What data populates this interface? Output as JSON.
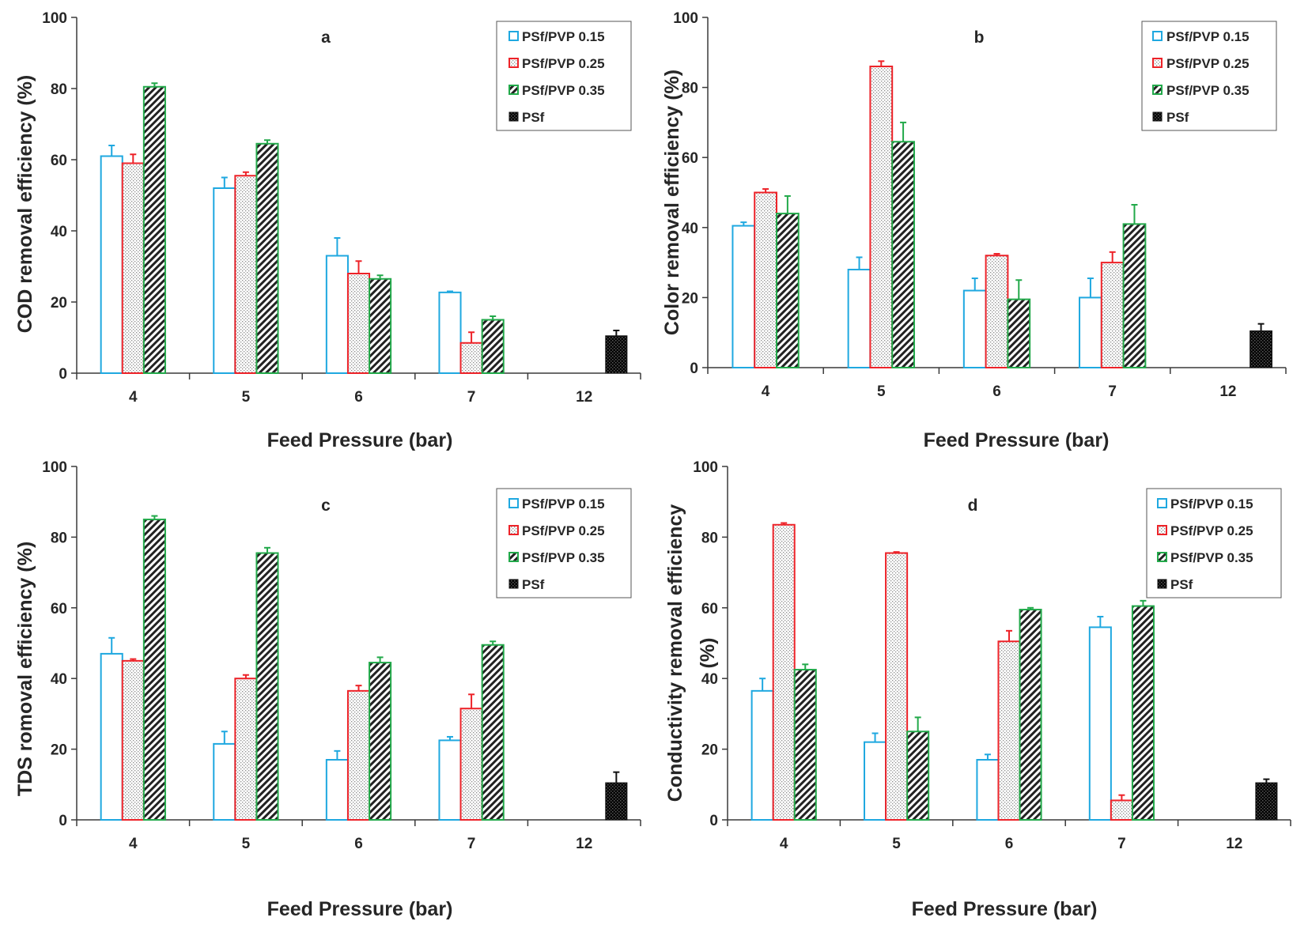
{
  "colors": {
    "PSf/PVP 0.15": "#1fa8e0",
    "PSf/PVP 0.25": "#ed2228",
    "PSf/PVP 0.35": "#22a94a",
    "PSf": "#111111"
  },
  "chart_data": [
    {
      "type": "bar",
      "letter": "a",
      "title": "a",
      "xlabel": "Feed Pressure (bar)",
      "ylabel": "COD removal efficiency (%)",
      "ylim": [
        0,
        100
      ],
      "yticks": [
        0,
        20,
        40,
        60,
        80,
        100
      ],
      "categories": [
        "4",
        "5",
        "6",
        "7",
        "12"
      ],
      "legend_position": "top-right",
      "series": [
        {
          "name": "PSf/PVP 0.15",
          "values": [
            61,
            52,
            33,
            22.7,
            null
          ],
          "errors": [
            3,
            3,
            5,
            0.3,
            null
          ]
        },
        {
          "name": "PSf/PVP 0.25",
          "values": [
            59,
            55.5,
            28,
            8.5,
            null
          ],
          "errors": [
            2.5,
            1,
            3.5,
            3,
            null
          ]
        },
        {
          "name": "PSf/PVP 0.35",
          "values": [
            80.5,
            64.5,
            26.5,
            15,
            null
          ],
          "errors": [
            1,
            1,
            1,
            1,
            null
          ]
        },
        {
          "name": "PSf",
          "values": [
            null,
            null,
            null,
            null,
            10.5
          ],
          "errors": [
            null,
            null,
            null,
            null,
            1.5
          ]
        }
      ]
    },
    {
      "type": "bar",
      "letter": "b",
      "title": "b",
      "xlabel": "Feed Pressure (bar)",
      "ylabel": "Color removal efficiency (%)",
      "ylim": [
        0,
        100
      ],
      "yticks": [
        0,
        20,
        40,
        60,
        80,
        100
      ],
      "categories": [
        "4",
        "5",
        "6",
        "7",
        "12"
      ],
      "legend_position": "top-right",
      "series": [
        {
          "name": "PSf/PVP 0.15",
          "values": [
            40.5,
            28,
            22,
            20,
            null
          ],
          "errors": [
            1,
            3.5,
            3.5,
            5.5,
            null
          ]
        },
        {
          "name": "PSf/PVP 0.25",
          "values": [
            50,
            86,
            32,
            30,
            null
          ],
          "errors": [
            1,
            1.5,
            0.5,
            3,
            null
          ]
        },
        {
          "name": "PSf/PVP 0.35",
          "values": [
            44,
            64.5,
            19.5,
            41,
            null
          ],
          "errors": [
            5,
            5.5,
            5.5,
            5.5,
            null
          ]
        },
        {
          "name": "PSf",
          "values": [
            null,
            null,
            null,
            null,
            10.5
          ],
          "errors": [
            null,
            null,
            null,
            null,
            2
          ]
        }
      ]
    },
    {
      "type": "bar",
      "letter": "c",
      "title": "c",
      "xlabel": "Feed Pressure (bar)",
      "ylabel": "TDS romoval efficiency (%)",
      "ylim": [
        0,
        100
      ],
      "yticks": [
        0,
        20,
        40,
        60,
        80,
        100
      ],
      "categories": [
        "4",
        "5",
        "6",
        "7",
        "12"
      ],
      "legend_position": "top-right",
      "series": [
        {
          "name": "PSf/PVP 0.15",
          "values": [
            47,
            21.5,
            17,
            22.5,
            null
          ],
          "errors": [
            4.5,
            3.5,
            2.5,
            1,
            null
          ]
        },
        {
          "name": "PSf/PVP 0.25",
          "values": [
            45,
            40,
            36.5,
            31.5,
            null
          ],
          "errors": [
            0.5,
            1,
            1.5,
            4,
            null
          ]
        },
        {
          "name": "PSf/PVP 0.35",
          "values": [
            85,
            75.5,
            44.5,
            49.5,
            null
          ],
          "errors": [
            1,
            1.5,
            1.5,
            1,
            null
          ]
        },
        {
          "name": "PSf",
          "values": [
            null,
            null,
            null,
            null,
            10.5
          ],
          "errors": [
            null,
            null,
            null,
            null,
            3
          ]
        }
      ]
    },
    {
      "type": "bar",
      "letter": "d",
      "title": "d",
      "xlabel": "Feed Pressure (bar)",
      "ylabel_lines": [
        "Conductivity removal efficiency",
        "(%)"
      ],
      "ylim": [
        0,
        100
      ],
      "yticks": [
        0,
        20,
        40,
        60,
        80,
        100
      ],
      "categories": [
        "4",
        "5",
        "6",
        "7",
        "12"
      ],
      "legend_position": "top-right",
      "series": [
        {
          "name": "PSf/PVP 0.15",
          "values": [
            36.5,
            22,
            17,
            54.5,
            null
          ],
          "errors": [
            3.5,
            2.5,
            1.5,
            3,
            null
          ]
        },
        {
          "name": "PSf/PVP 0.25",
          "values": [
            83.5,
            75.5,
            50.5,
            5.5,
            null
          ],
          "errors": [
            0.5,
            0.3,
            3,
            1.5,
            null
          ]
        },
        {
          "name": "PSf/PVP 0.35",
          "values": [
            42.5,
            25,
            59.5,
            60.5,
            null
          ],
          "errors": [
            1.5,
            4,
            0.5,
            1.5,
            null
          ]
        },
        {
          "name": "PSf",
          "values": [
            null,
            null,
            null,
            null,
            10.5
          ],
          "errors": [
            null,
            null,
            null,
            null,
            1
          ]
        }
      ]
    }
  ]
}
